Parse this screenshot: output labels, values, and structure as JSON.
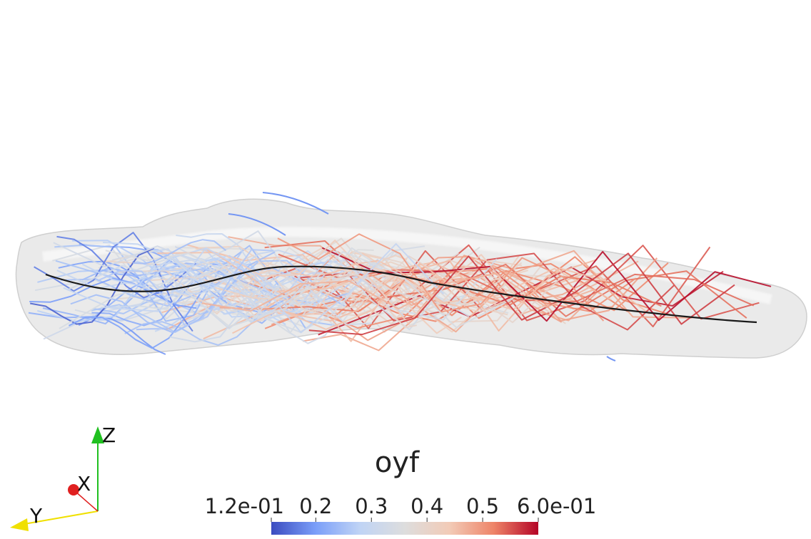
{
  "scene": {
    "background": "#ffffff",
    "surface_color": "#d9d9d9",
    "centerline_color": "#1a1a1a"
  },
  "colorbar": {
    "title": "oyf",
    "range": [
      0.12,
      0.6
    ],
    "ticks": [
      {
        "value": 0.12,
        "label": "1.2e-01"
      },
      {
        "value": 0.2,
        "label": "0.2"
      },
      {
        "value": 0.3,
        "label": "0.3"
      },
      {
        "value": 0.4,
        "label": "0.4"
      },
      {
        "value": 0.5,
        "label": "0.5"
      },
      {
        "value": 0.6,
        "label": "6.0e-01"
      }
    ],
    "colormap": [
      "#3b4cc0",
      "#7b9ff9",
      "#c0d4f5",
      "#dddddd",
      "#f2cbb7",
      "#ee8468",
      "#b40426"
    ]
  },
  "orientation_axes": {
    "x_label": "X",
    "y_label": "Y",
    "z_label": "Z",
    "x_color": "#e02020",
    "y_color": "#f0e000",
    "z_color": "#20c020"
  }
}
